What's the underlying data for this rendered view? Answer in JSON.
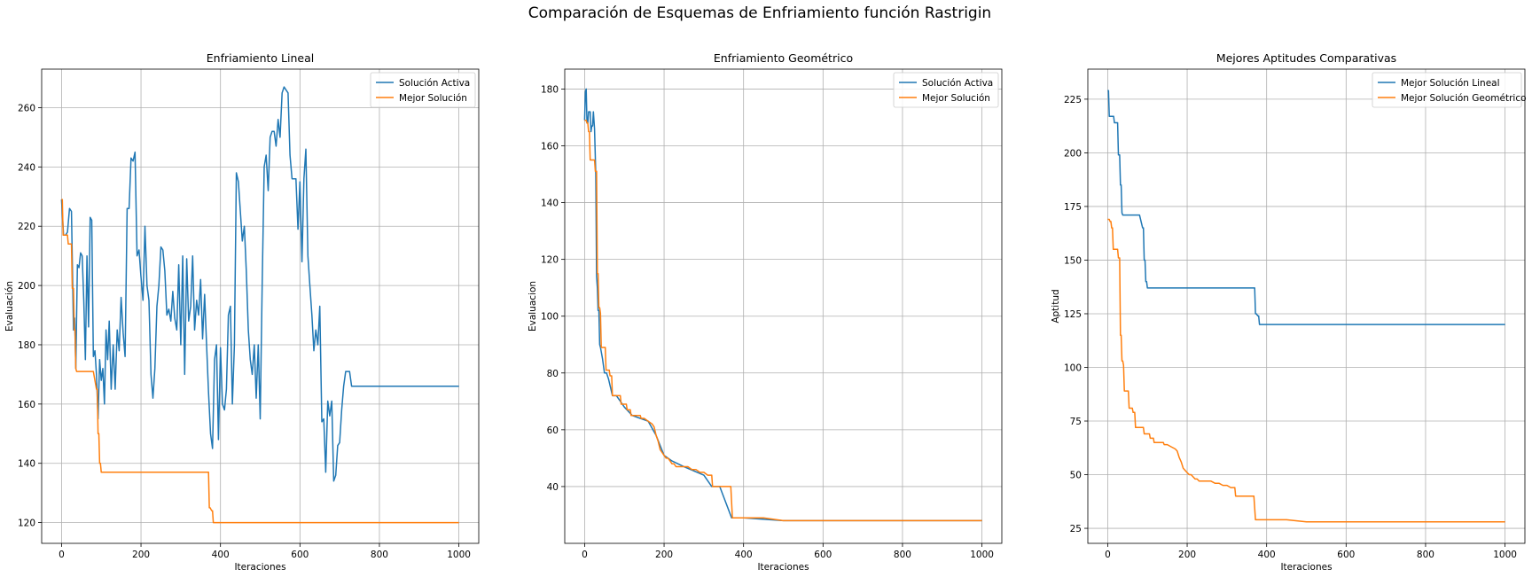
{
  "figure": {
    "title": "Comparación de Esquemas de Enfriamiento función Rastrigin"
  },
  "colors": {
    "blue": "#1f77b4",
    "orange": "#ff7f0e"
  },
  "chart_data": [
    {
      "type": "line",
      "title": "Enfriamiento Lineal",
      "xlabel": "Iteraciones",
      "ylabel": "Evaluación",
      "xlim": [
        -50,
        1050
      ],
      "ylim": [
        113,
        273
      ],
      "xticks": [
        0,
        200,
        400,
        600,
        800,
        1000
      ],
      "yticks": [
        120,
        140,
        160,
        180,
        200,
        220,
        240,
        260
      ],
      "grid": true,
      "legend": "top-right",
      "series": [
        {
          "name": "Solución Activa",
          "color": "#1f77b4",
          "x": [
            0,
            5,
            10,
            15,
            20,
            25,
            30,
            33,
            36,
            40,
            44,
            48,
            52,
            56,
            60,
            64,
            68,
            72,
            76,
            80,
            84,
            88,
            92,
            96,
            100,
            104,
            108,
            112,
            116,
            120,
            125,
            130,
            135,
            140,
            145,
            150,
            155,
            160,
            165,
            170,
            175,
            180,
            185,
            190,
            195,
            200,
            205,
            210,
            215,
            220,
            225,
            230,
            235,
            240,
            245,
            250,
            255,
            260,
            265,
            270,
            275,
            280,
            285,
            290,
            295,
            300,
            305,
            310,
            315,
            320,
            325,
            330,
            335,
            340,
            345,
            350,
            355,
            360,
            365,
            370,
            375,
            380,
            385,
            390,
            395,
            400,
            405,
            410,
            415,
            420,
            425,
            430,
            435,
            440,
            445,
            450,
            455,
            460,
            465,
            470,
            475,
            480,
            485,
            490,
            495,
            500,
            505,
            510,
            515,
            520,
            525,
            530,
            535,
            540,
            545,
            550,
            555,
            560,
            565,
            570,
            575,
            580,
            585,
            590,
            595,
            600,
            605,
            610,
            615,
            620,
            625,
            630,
            635,
            640,
            645,
            650,
            655,
            660,
            665,
            670,
            675,
            680,
            685,
            690,
            695,
            700,
            705,
            710,
            715,
            720,
            725,
            730,
            735,
            740,
            750,
            760,
            770,
            780,
            785,
            800,
            850,
            900,
            950,
            1000
          ],
          "y": [
            229,
            217,
            217,
            218,
            226,
            225,
            185,
            189,
            172,
            207,
            206,
            211,
            210,
            195,
            175,
            210,
            186,
            223,
            222,
            176,
            178,
            170,
            155,
            175,
            168,
            172,
            160,
            185,
            175,
            188,
            165,
            180,
            165,
            185,
            178,
            196,
            184,
            176,
            226,
            226,
            243,
            242,
            245,
            210,
            212,
            203,
            195,
            220,
            200,
            195,
            170,
            162,
            172,
            193,
            200,
            213,
            212,
            205,
            190,
            192,
            188,
            198,
            189,
            185,
            207,
            180,
            210,
            170,
            209,
            188,
            193,
            210,
            185,
            195,
            190,
            202,
            182,
            197,
            180,
            164,
            150,
            145,
            175,
            180,
            148,
            179,
            160,
            158,
            165,
            190,
            193,
            160,
            180,
            238,
            235,
            225,
            215,
            220,
            205,
            185,
            175,
            170,
            180,
            162,
            180,
            155,
            200,
            240,
            244,
            232,
            250,
            252,
            252,
            247,
            256,
            250,
            265,
            267,
            266,
            265,
            244,
            236,
            236,
            236,
            219,
            235,
            208,
            236,
            246,
            210,
            200,
            190,
            178,
            185,
            180,
            193,
            154,
            155,
            137,
            161,
            156,
            161,
            134,
            136,
            146,
            147,
            158,
            166,
            171,
            171,
            171,
            166,
            166,
            166,
            166,
            166,
            166,
            166,
            166,
            166,
            166,
            166,
            166,
            166
          ]
        },
        {
          "name": "Mejor Solución",
          "color": "#ff7f0e",
          "x": [
            0,
            2,
            4,
            15,
            17,
            25,
            27,
            30,
            32,
            34,
            36,
            38,
            78,
            80,
            88,
            90,
            92,
            94,
            96,
            98,
            100,
            370,
            372,
            374,
            378,
            380,
            382,
            1000
          ],
          "y": [
            229,
            229,
            217,
            217,
            214,
            214,
            199,
            199,
            185,
            185,
            172,
            171,
            171,
            171,
            165,
            165,
            150,
            150,
            140,
            140,
            137,
            137,
            125,
            125,
            124,
            124,
            120,
            120
          ]
        }
      ]
    },
    {
      "type": "line",
      "title": "Enfriamiento Geométrico",
      "xlabel": "Iteraciones",
      "ylabel": "Evaluacion",
      "xlim": [
        -50,
        1050
      ],
      "ylim": [
        20,
        187
      ],
      "xticks": [
        0,
        200,
        400,
        600,
        800,
        1000
      ],
      "yticks": [
        40,
        60,
        80,
        100,
        120,
        140,
        160,
        180
      ],
      "grid": true,
      "legend": "top-right",
      "series": [
        {
          "name": "Solución Activa",
          "color": "#1f77b4",
          "x": [
            0,
            2,
            4,
            6,
            8,
            10,
            12,
            14,
            16,
            18,
            20,
            22,
            25,
            28,
            30,
            32,
            34,
            36,
            38,
            40,
            45,
            50,
            55,
            60,
            70,
            80,
            100,
            120,
            140,
            160,
            180,
            200,
            220,
            250,
            300,
            320,
            340,
            370,
            380,
            400,
            500,
            600,
            700,
            800,
            900,
            1000
          ],
          "y": [
            169,
            179,
            180,
            168,
            168,
            172,
            172,
            172,
            165,
            167,
            167,
            172,
            166,
            150,
            114,
            110,
            102,
            102,
            90,
            89,
            85,
            80,
            80,
            78,
            72,
            72,
            68,
            65,
            64,
            63,
            58,
            51,
            49,
            47,
            44,
            40,
            40,
            29,
            29,
            29,
            28,
            28,
            28,
            28,
            28,
            28
          ]
        },
        {
          "name": "Mejor Solución",
          "color": "#ff7f0e",
          "x": [
            0,
            4,
            6,
            8,
            10,
            12,
            14,
            25,
            27,
            30,
            32,
            34,
            36,
            38,
            40,
            42,
            52,
            54,
            62,
            64,
            68,
            70,
            90,
            92,
            105,
            107,
            115,
            117,
            140,
            142,
            150,
            160,
            170,
            175,
            180,
            185,
            190,
            195,
            200,
            205,
            210,
            215,
            220,
            225,
            230,
            240,
            250,
            260,
            270,
            280,
            290,
            300,
            310,
            320,
            322,
            360,
            368,
            372,
            450,
            500,
            1000
          ],
          "y": [
            169,
            169,
            168,
            168,
            165,
            165,
            155,
            155,
            151,
            151,
            115,
            115,
            103,
            103,
            101,
            89,
            89,
            81,
            81,
            79,
            79,
            72,
            72,
            69,
            69,
            67,
            67,
            65,
            65,
            64,
            64,
            63,
            62,
            61,
            58,
            56,
            53,
            52,
            51,
            50,
            50,
            49,
            48,
            48,
            47,
            47,
            47,
            47,
            46,
            46,
            45,
            45,
            44,
            44,
            40,
            40,
            40,
            29,
            29,
            28,
            28
          ]
        }
      ]
    },
    {
      "type": "line",
      "title": "Mejores Aptitudes Comparativas",
      "xlabel": "Iteraciones",
      "ylabel": "Aptitud",
      "xlim": [
        -50,
        1050
      ],
      "ylim": [
        18,
        239
      ],
      "xticks": [
        0,
        200,
        400,
        600,
        800,
        1000
      ],
      "yticks": [
        25,
        50,
        75,
        100,
        125,
        150,
        175,
        200,
        225
      ],
      "grid": true,
      "legend": "top-right",
      "series": [
        {
          "name": "Mejor Solución Lineal",
          "color": "#1f77b4",
          "x": [
            0,
            2,
            4,
            15,
            17,
            25,
            27,
            30,
            32,
            34,
            36,
            38,
            78,
            80,
            88,
            90,
            92,
            94,
            96,
            98,
            100,
            370,
            372,
            374,
            378,
            380,
            382,
            1000
          ],
          "y": [
            229,
            229,
            217,
            217,
            214,
            214,
            199,
            199,
            185,
            185,
            172,
            171,
            171,
            171,
            165,
            165,
            150,
            150,
            140,
            140,
            137,
            137,
            125,
            125,
            124,
            124,
            120,
            120
          ]
        },
        {
          "name": "Mejor Solución Geométrico",
          "color": "#ff7f0e",
          "x": [
            0,
            4,
            6,
            8,
            10,
            12,
            14,
            25,
            27,
            30,
            32,
            34,
            36,
            38,
            40,
            42,
            52,
            54,
            62,
            64,
            68,
            70,
            90,
            92,
            105,
            107,
            115,
            117,
            140,
            142,
            150,
            160,
            170,
            175,
            180,
            185,
            190,
            195,
            200,
            205,
            210,
            215,
            220,
            225,
            230,
            240,
            250,
            260,
            270,
            280,
            290,
            300,
            310,
            320,
            322,
            360,
            368,
            372,
            450,
            500,
            1000
          ],
          "y": [
            169,
            169,
            168,
            168,
            165,
            165,
            155,
            155,
            151,
            151,
            115,
            115,
            103,
            103,
            101,
            89,
            89,
            81,
            81,
            79,
            79,
            72,
            72,
            69,
            69,
            67,
            67,
            65,
            65,
            64,
            64,
            63,
            62,
            61,
            58,
            56,
            53,
            52,
            51,
            50,
            50,
            49,
            48,
            48,
            47,
            47,
            47,
            47,
            46,
            46,
            45,
            45,
            44,
            44,
            40,
            40,
            40,
            29,
            29,
            28,
            28
          ]
        }
      ]
    }
  ]
}
